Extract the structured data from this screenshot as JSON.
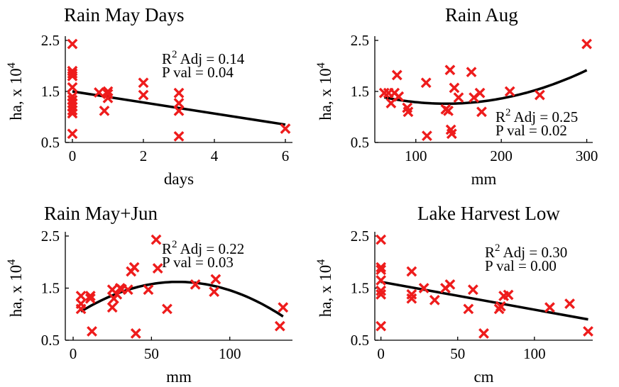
{
  "chart_data": [
    {
      "type": "scatter",
      "title": "Rain May Days",
      "xlabel": "days",
      "ylabel": "ha, x 10",
      "ylabel_exp": "4",
      "xlim": [
        -0.2,
        6.2
      ],
      "ylim": [
        0.5,
        2.5
      ],
      "xticks": [
        "0",
        "2",
        "4",
        "6"
      ],
      "xtick_values": [
        0,
        2,
        4,
        6
      ],
      "yticks": [
        "0.5",
        "1.5",
        "2.5"
      ],
      "ytick_values": [
        0.5,
        1.5,
        2.5
      ],
      "annotation": {
        "r2": "R",
        "r2_sup": "2",
        "r2_rest": " Adj = 0.14",
        "pval": "P val = 0.04"
      },
      "fit": {
        "kind": "linear",
        "x": [
          0,
          6
        ],
        "y": [
          1.5,
          0.85
        ]
      },
      "points": [
        {
          "x": 0,
          "y": 2.43
        },
        {
          "x": 0,
          "y": 1.9
        },
        {
          "x": 0,
          "y": 1.85
        },
        {
          "x": 0,
          "y": 1.8
        },
        {
          "x": 0,
          "y": 1.58
        },
        {
          "x": 0,
          "y": 1.4
        },
        {
          "x": 0,
          "y": 1.33
        },
        {
          "x": 0,
          "y": 1.27
        },
        {
          "x": 0,
          "y": 1.2
        },
        {
          "x": 0,
          "y": 1.13
        },
        {
          "x": 0,
          "y": 1.07
        },
        {
          "x": 0,
          "y": 0.67
        },
        {
          "x": 0.75,
          "y": 1.48
        },
        {
          "x": 0.9,
          "y": 1.12
        },
        {
          "x": 1.0,
          "y": 1.5
        },
        {
          "x": 1.0,
          "y": 1.45
        },
        {
          "x": 1.0,
          "y": 1.37
        },
        {
          "x": 2.0,
          "y": 1.67
        },
        {
          "x": 2.0,
          "y": 1.43
        },
        {
          "x": 3.0,
          "y": 1.47
        },
        {
          "x": 3.0,
          "y": 1.27
        },
        {
          "x": 3.0,
          "y": 1.12
        },
        {
          "x": 3.0,
          "y": 0.62
        },
        {
          "x": 6.0,
          "y": 0.77
        }
      ]
    },
    {
      "type": "scatter",
      "title": "Rain Aug",
      "xlabel": "mm",
      "ylabel": "ha, x 10",
      "ylabel_exp": "4",
      "xlim": [
        52,
        307
      ],
      "ylim": [
        0.5,
        2.5
      ],
      "xticks": [
        "100",
        "200",
        "300"
      ],
      "xtick_values": [
        100,
        200,
        300
      ],
      "yticks": [
        "0.5",
        "1.5",
        "2.5"
      ],
      "ytick_values": [
        0.5,
        1.5,
        2.5
      ],
      "annotation": {
        "r2": "R",
        "r2_sup": "2",
        "r2_rest": " Adj = 0.25",
        "pval": "P val = 0.02"
      },
      "fit": {
        "kind": "quadratic",
        "x_range": [
          63,
          300
        ],
        "x0": 135,
        "y0": 1.26,
        "a": 2.41e-05
      },
      "points": [
        {
          "x": 63,
          "y": 1.47
        },
        {
          "x": 68,
          "y": 1.47
        },
        {
          "x": 71,
          "y": 1.27
        },
        {
          "x": 75,
          "y": 1.47
        },
        {
          "x": 78,
          "y": 1.82
        },
        {
          "x": 80,
          "y": 1.4
        },
        {
          "x": 90,
          "y": 1.18
        },
        {
          "x": 91,
          "y": 1.1
        },
        {
          "x": 112,
          "y": 1.67
        },
        {
          "x": 113,
          "y": 0.63
        },
        {
          "x": 135,
          "y": 1.15
        },
        {
          "x": 138,
          "y": 1.12
        },
        {
          "x": 140,
          "y": 1.92
        },
        {
          "x": 141,
          "y": 0.75
        },
        {
          "x": 142,
          "y": 0.67
        },
        {
          "x": 145,
          "y": 1.57
        },
        {
          "x": 150,
          "y": 1.38
        },
        {
          "x": 165,
          "y": 1.88
        },
        {
          "x": 168,
          "y": 1.38
        },
        {
          "x": 175,
          "y": 1.47
        },
        {
          "x": 177,
          "y": 1.1
        },
        {
          "x": 210,
          "y": 1.5
        },
        {
          "x": 245,
          "y": 1.43
        },
        {
          "x": 300,
          "y": 2.43
        }
      ]
    },
    {
      "type": "scatter",
      "title": "Rain May+Jun",
      "xlabel": "mm",
      "ylabel": "ha, x 10",
      "ylabel_exp": "4",
      "xlim": [
        -5,
        140
      ],
      "ylim": [
        0.5,
        2.5
      ],
      "xticks": [
        "0",
        "50",
        "100"
      ],
      "xtick_values": [
        0,
        50,
        100
      ],
      "yticks": [
        "0.5",
        "1.5",
        "2.5"
      ],
      "ytick_values": [
        0.5,
        1.5,
        2.5
      ],
      "annotation": {
        "r2": "R",
        "r2_sup": "2",
        "r2_rest": " Adj = 0.22",
        "pval": "P val = 0.03"
      },
      "fit": {
        "kind": "quadratic",
        "x_range": [
          5,
          134
        ],
        "x0": 67,
        "y0": 1.62,
        "a": -0.000148
      },
      "points": [
        {
          "x": 5,
          "y": 1.35
        },
        {
          "x": 5,
          "y": 1.2
        },
        {
          "x": 5,
          "y": 1.1
        },
        {
          "x": 11,
          "y": 1.35
        },
        {
          "x": 11,
          "y": 1.3
        },
        {
          "x": 12,
          "y": 0.67
        },
        {
          "x": 25,
          "y": 1.47
        },
        {
          "x": 25,
          "y": 1.13
        },
        {
          "x": 26,
          "y": 1.3
        },
        {
          "x": 28,
          "y": 1.38
        },
        {
          "x": 30,
          "y": 1.5
        },
        {
          "x": 31,
          "y": 1.48
        },
        {
          "x": 35,
          "y": 1.47
        },
        {
          "x": 37,
          "y": 1.82
        },
        {
          "x": 39,
          "y": 1.9
        },
        {
          "x": 40,
          "y": 0.63
        },
        {
          "x": 48,
          "y": 1.47
        },
        {
          "x": 53,
          "y": 2.43
        },
        {
          "x": 54,
          "y": 1.88
        },
        {
          "x": 60,
          "y": 1.1
        },
        {
          "x": 78,
          "y": 1.57
        },
        {
          "x": 90,
          "y": 1.43
        },
        {
          "x": 91,
          "y": 1.67
        },
        {
          "x": 132,
          "y": 0.77
        },
        {
          "x": 134,
          "y": 1.13
        }
      ]
    },
    {
      "type": "scatter",
      "title": "Lake Harvest Low",
      "xlabel": "cm",
      "ylabel": "ha, x 10",
      "ylabel_exp": "4",
      "xlim": [
        -4,
        138
      ],
      "ylim": [
        0.5,
        2.5
      ],
      "xticks": [
        "0",
        "50",
        "100"
      ],
      "xtick_values": [
        0,
        50,
        100
      ],
      "yticks": [
        "0.5",
        "1.5",
        "2.5"
      ],
      "ytick_values": [
        0.5,
        1.5,
        2.5
      ],
      "annotation": {
        "r2": "R",
        "r2_sup": "2",
        "r2_rest": " Adj = 0.30",
        "pval": "P val = 0.00"
      },
      "fit": {
        "kind": "linear",
        "x": [
          0,
          135
        ],
        "y": [
          1.62,
          0.9
        ]
      },
      "points": [
        {
          "x": 0,
          "y": 2.43
        },
        {
          "x": 0,
          "y": 1.9
        },
        {
          "x": 0,
          "y": 1.85
        },
        {
          "x": 0,
          "y": 1.65
        },
        {
          "x": 0,
          "y": 1.45
        },
        {
          "x": 0,
          "y": 1.38
        },
        {
          "x": 0,
          "y": 0.77
        },
        {
          "x": 20,
          "y": 1.82
        },
        {
          "x": 20,
          "y": 1.38
        },
        {
          "x": 20,
          "y": 1.3
        },
        {
          "x": 28,
          "y": 1.5
        },
        {
          "x": 35,
          "y": 1.27
        },
        {
          "x": 42,
          "y": 1.5
        },
        {
          "x": 45,
          "y": 1.57
        },
        {
          "x": 57,
          "y": 1.1
        },
        {
          "x": 60,
          "y": 1.47
        },
        {
          "x": 67,
          "y": 0.63
        },
        {
          "x": 77,
          "y": 1.1
        },
        {
          "x": 78,
          "y": 1.15
        },
        {
          "x": 80,
          "y": 1.35
        },
        {
          "x": 83,
          "y": 1.37
        },
        {
          "x": 110,
          "y": 1.13
        },
        {
          "x": 123,
          "y": 1.2
        },
        {
          "x": 135,
          "y": 0.67
        }
      ]
    }
  ]
}
